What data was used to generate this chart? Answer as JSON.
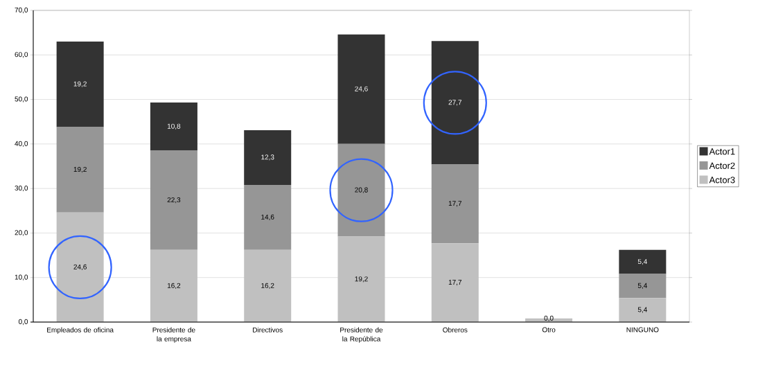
{
  "chart_data": {
    "type": "bar",
    "stacked": true,
    "categories": [
      "Empleados de oficina",
      "Presidente de la empresa",
      "Directivos",
      "Presidente de la República",
      "Obreros",
      "Otro",
      "NINGUNO"
    ],
    "series": [
      {
        "name": "Actor3",
        "color": "#c0c0c0",
        "values": [
          24.6,
          16.2,
          16.2,
          19.2,
          17.7,
          0.8,
          5.4
        ],
        "value_labels": [
          "24,6",
          "16,2",
          "16,2",
          "19,2",
          "17,7",
          null,
          "5,4"
        ]
      },
      {
        "name": "Actor2",
        "color": "#969696",
        "values": [
          19.2,
          22.3,
          14.6,
          20.8,
          17.7,
          0,
          5.4
        ],
        "value_labels": [
          "19,2",
          "22,3",
          "14,6",
          "20,8",
          "17,7",
          null,
          "5,4"
        ]
      },
      {
        "name": "Actor1",
        "color": "#333333",
        "values": [
          19.2,
          10.8,
          12.3,
          24.6,
          27.7,
          0,
          5.4
        ],
        "value_labels": [
          "19,2",
          "10,8",
          "12,3",
          "24,6",
          "27,7",
          "0,0",
          "5,4"
        ]
      }
    ],
    "ylim": [
      0,
      70
    ],
    "yticks": [
      {
        "value": 0,
        "label": "0,0"
      },
      {
        "value": 10,
        "label": "10,0"
      },
      {
        "value": 20,
        "label": "20,0"
      },
      {
        "value": 30,
        "label": "30,0"
      },
      {
        "value": 40,
        "label": "40,0"
      },
      {
        "value": 50,
        "label": "50,0"
      },
      {
        "value": 60,
        "label": "60,0"
      },
      {
        "value": 70,
        "label": "70,0"
      }
    ],
    "grid": "y",
    "legend": "right"
  }
}
